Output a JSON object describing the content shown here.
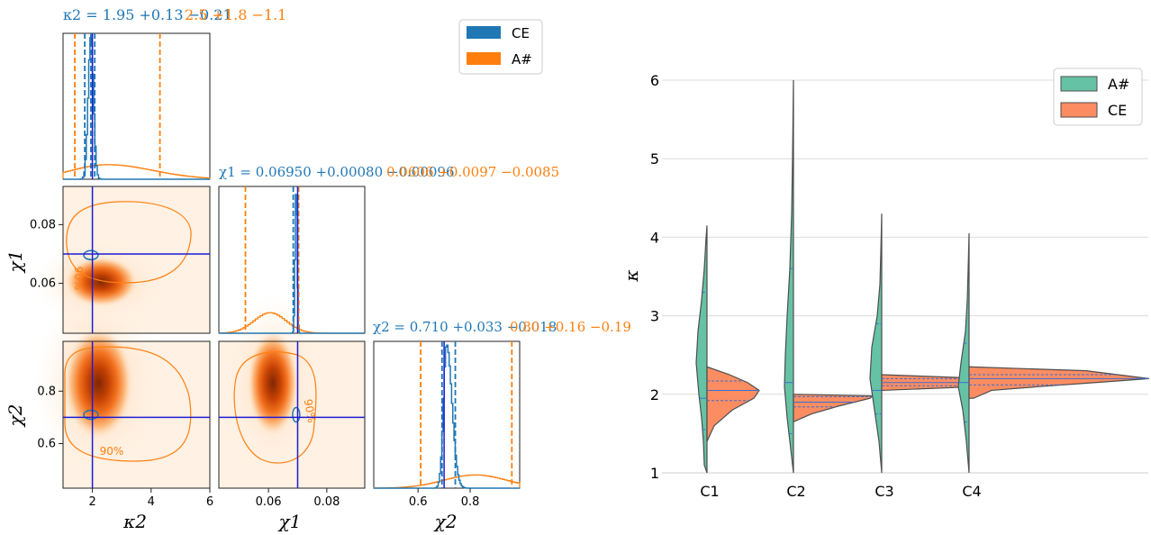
{
  "colors": {
    "ce": "#1f77b4",
    "asharp": "#ff7f0e",
    "truth": "#1c1cd6",
    "violin_asharp": "#66c2a5",
    "violin_ce": "#fc8d62",
    "violin_edge": "#4d4d4d",
    "violin_quartile": "#3a6fd1"
  },
  "chart_data": [
    {
      "type": "corner",
      "legend": {
        "position": "top-right",
        "entries": [
          "CE",
          "A#"
        ]
      },
      "parameters": [
        "κ2",
        "χ1",
        "χ2"
      ],
      "axis_labels": {
        "kappa2": "κ2",
        "chi1": "χ1",
        "chi2": "χ2"
      },
      "ranges": {
        "kappa2": [
          1,
          6
        ],
        "chi1": [
          0.043,
          0.093
        ],
        "chi2": [
          0.43,
          0.99
        ]
      },
      "ticks": {
        "kappa2": [
          2,
          4,
          6
        ],
        "kappa2_labels": [
          "2",
          "4",
          "6"
        ],
        "chi1": [
          0.06,
          0.08
        ],
        "chi1_labels": [
          "0.06",
          "0.08"
        ],
        "chi2": [
          0.6,
          0.8
        ],
        "chi2_labels": [
          "0.6",
          "0.8"
        ]
      },
      "truth": {
        "kappa2": 2.0,
        "chi1": 0.07,
        "chi2": 0.7
      },
      "titles": {
        "kappa2": {
          "ce": "κ2 = 1.95 +0.13 −0.21",
          "asharp": "2.5 +1.8 −1.1"
        },
        "chi1": {
          "ce": "χ1 = 0.06950 +0.00080 −0.00096",
          "asharp": "0.0606 +0.0097 −0.0085"
        },
        "chi2": {
          "ce": "χ2 = 0.710 +0.033 −0.018",
          "asharp": "0.80 +0.16 −0.19"
        }
      },
      "summary": {
        "ce": {
          "kappa2": [
            1.95,
            0.13,
            0.21
          ],
          "chi1": [
            0.0695,
            0.0008,
            0.00096
          ],
          "chi2": [
            0.71,
            0.033,
            0.018
          ]
        },
        "asharp": {
          "kappa2": [
            2.5,
            1.8,
            1.1
          ],
          "chi1": [
            0.0606,
            0.0097,
            0.0085
          ],
          "chi2": [
            0.8,
            0.16,
            0.19
          ]
        }
      },
      "contour_label": "90%"
    },
    {
      "type": "violin",
      "categories": [
        "C1",
        "C2",
        "C3",
        "C4"
      ],
      "ylabel": "κ",
      "ylim": [
        1,
        6
      ],
      "yticks": [
        1,
        2,
        3,
        4,
        5,
        6
      ],
      "grid": true,
      "legend": {
        "position": "top-right",
        "entries": [
          "A#",
          "CE"
        ]
      },
      "series": [
        {
          "name": "A#",
          "side": "left",
          "min": [
            1.0,
            1.0,
            1.0,
            1.0
          ],
          "max": [
            4.15,
            6.0,
            4.3,
            4.05
          ],
          "quartiles": [
            [
              1.55,
              1.95,
              3.3
            ],
            [
              1.5,
              2.15,
              3.6
            ],
            [
              1.75,
              2.05,
              2.9
            ],
            [
              1.65,
              2.15,
              2.65
            ]
          ]
        },
        {
          "name": "CE",
          "side": "right",
          "min": [
            1.4,
            1.65,
            2.05,
            1.95
          ],
          "max": [
            2.35,
            2.0,
            2.25,
            2.35
          ],
          "quartiles": [
            [
              1.92,
              2.05,
              2.17
            ],
            [
              1.84,
              1.9,
              1.97
            ],
            [
              2.11,
              2.15,
              2.2
            ],
            [
              2.12,
              2.2,
              2.25
            ]
          ]
        }
      ]
    }
  ]
}
